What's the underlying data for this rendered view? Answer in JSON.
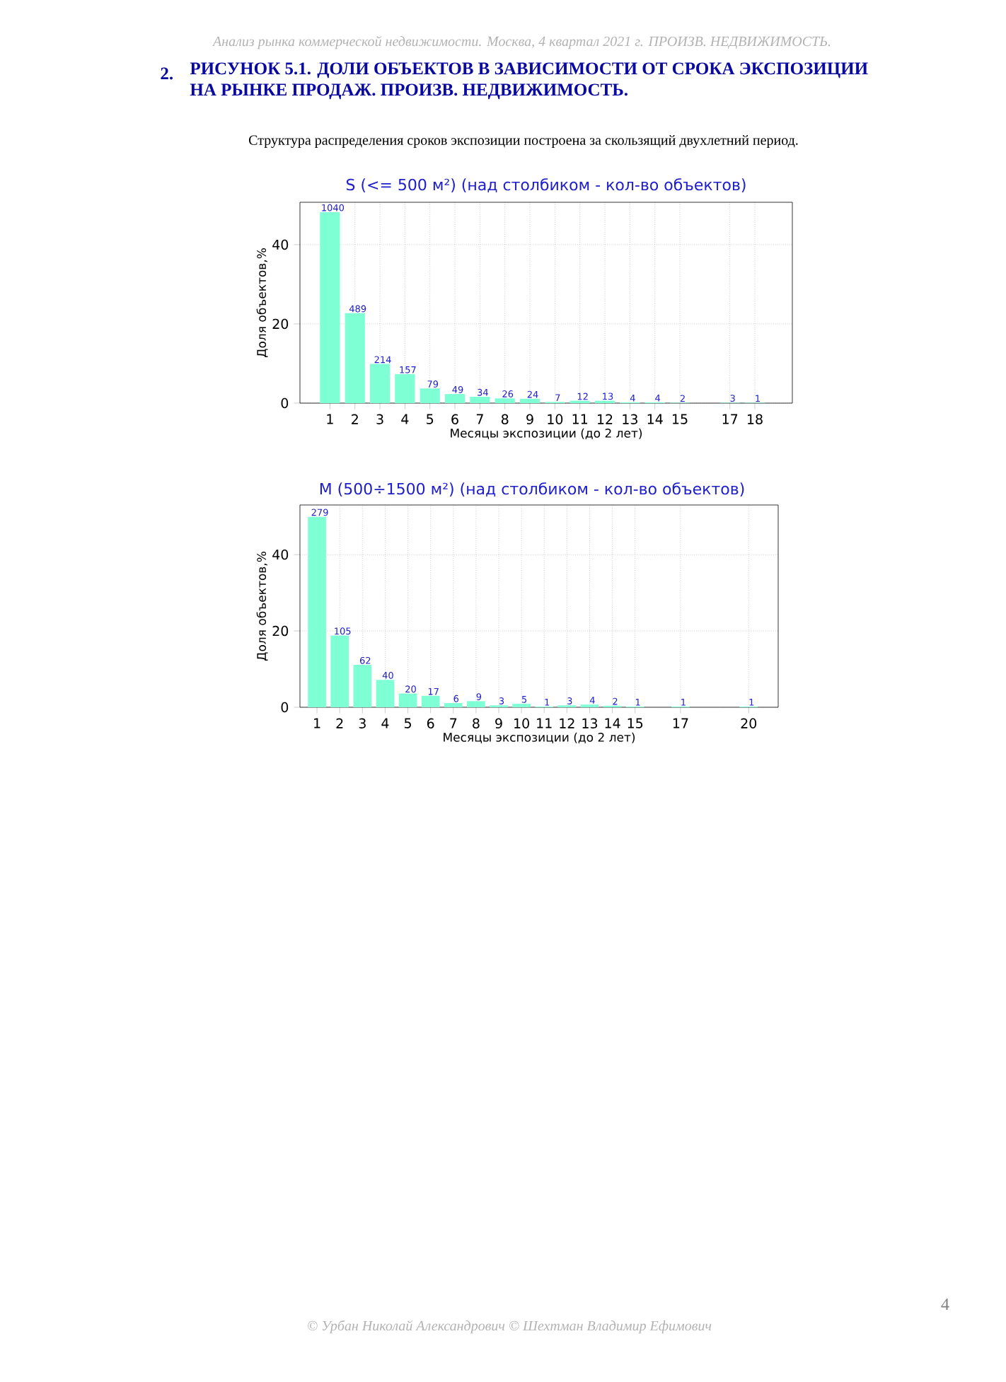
{
  "chart_data": [
    {
      "type": "bar",
      "title": "S (<= 500 м²) (над столбиком - кол-во объектов)",
      "xlabel": "Месяцы экспозиции (до 2 лет)",
      "ylabel": "Доля объектов,%",
      "annotations": [
        "Анализ рынка коммерческой недвижимости.  Москва,  4 квартал 2021 г.  ПРОИЗВ. НЕДВИЖИМОСТЬ.",
        "2.",
        "РИСУНОК 5.1. ДОЛИ ОБЪЕКТОВ В ЗАВИСИМОСТИ ОТ СРОКА ЭКСПОЗИЦИИ НА РЫНКЕ ПРОДАЖ.  ПРОИЗВ. НЕДВИЖИМОСТЬ.",
        "Структура распределения сроков экспозиции построена за скользящий двухлетний период.",
        "© Урбан Николай Александрович   © Шехтман Владимир Ефимович",
        "4",
        {
          "text": "1040",
          "x": 1,
          "y": 48.2
        },
        {
          "text": "489",
          "x": 2,
          "y": 22.7
        },
        {
          "text": "214",
          "x": 3,
          "y": 9.9
        },
        {
          "text": "157",
          "x": 4,
          "y": 7.3
        },
        {
          "text": "79",
          "x": 5,
          "y": 3.7
        },
        {
          "text": "49",
          "x": 6,
          "y": 2.3
        },
        {
          "text": "34",
          "x": 7,
          "y": 1.6
        },
        {
          "text": "26",
          "x": 8,
          "y": 1.2
        },
        {
          "text": "24",
          "x": 9,
          "y": 1.1
        },
        {
          "text": "7",
          "x": 10,
          "y": 0.3
        },
        {
          "text": "12",
          "x": 11,
          "y": 0.6
        },
        {
          "text": "13",
          "x": 12,
          "y": 0.6
        },
        {
          "text": "4",
          "x": 13,
          "y": 0.2
        },
        {
          "text": "4",
          "x": 14,
          "y": 0.2
        },
        {
          "text": "2",
          "x": 15,
          "y": 0.1
        },
        {
          "text": "3",
          "x": 17,
          "y": 0.1
        },
        {
          "text": "1",
          "x": 18,
          "y": 0.1
        }
      ],
      "x": [
        1,
        2,
        3,
        4,
        5,
        6,
        7,
        8,
        9,
        10,
        11,
        12,
        13,
        14,
        15,
        17,
        18
      ],
      "values": [
        48.2,
        22.7,
        9.9,
        7.3,
        3.7,
        2.3,
        1.6,
        1.2,
        1.1,
        0.3,
        0.6,
        0.6,
        0.2,
        0.2,
        0.1,
        0.1,
        0.1
      ],
      "color": "#7fffd4",
      "xlim": [
        -0.2,
        19.5
      ],
      "ylim": [
        0,
        50.7
      ],
      "xticks": [
        1,
        2,
        3,
        4,
        5,
        6,
        7,
        8,
        9,
        10,
        11,
        12,
        13,
        14,
        15,
        17,
        18
      ],
      "yticks": [
        0,
        20,
        40
      ],
      "grid": true
    },
    {
      "type": "bar",
      "title": "M (500÷1500 м²) (над столбиком - кол-во объектов)",
      "xlabel": "Месяцы экспозиции (до 2 лет)",
      "ylabel": "Доля объектов,%",
      "annotations": [
        {
          "text": "279",
          "x": 1,
          "y": 49.9
        },
        {
          "text": "105",
          "x": 2,
          "y": 18.8
        },
        {
          "text": "62",
          "x": 3,
          "y": 11.1
        },
        {
          "text": "40",
          "x": 4,
          "y": 7.2
        },
        {
          "text": "20",
          "x": 5,
          "y": 3.6
        },
        {
          "text": "17",
          "x": 6,
          "y": 3.0
        },
        {
          "text": "6",
          "x": 7,
          "y": 1.1
        },
        {
          "text": "9",
          "x": 8,
          "y": 1.6
        },
        {
          "text": "3",
          "x": 9,
          "y": 0.5
        },
        {
          "text": "5",
          "x": 10,
          "y": 0.9
        },
        {
          "text": "1",
          "x": 11,
          "y": 0.2
        },
        {
          "text": "3",
          "x": 12,
          "y": 0.5
        },
        {
          "text": "4",
          "x": 13,
          "y": 0.7
        },
        {
          "text": "2",
          "x": 14,
          "y": 0.4
        },
        {
          "text": "1",
          "x": 15,
          "y": 0.2
        },
        {
          "text": "1",
          "x": 17,
          "y": 0.2
        },
        {
          "text": "1",
          "x": 20,
          "y": 0.2
        }
      ],
      "x": [
        1,
        2,
        3,
        4,
        5,
        6,
        7,
        8,
        9,
        10,
        11,
        12,
        13,
        14,
        15,
        17,
        20
      ],
      "values": [
        49.9,
        18.8,
        11.1,
        7.2,
        3.6,
        3.0,
        1.1,
        1.6,
        0.5,
        0.9,
        0.2,
        0.5,
        0.7,
        0.4,
        0.2,
        0.2,
        0.2
      ],
      "color": "#7fffd4",
      "xlim": [
        0.25,
        21.3
      ],
      "ylim": [
        0,
        53
      ],
      "xticks": [
        1,
        2,
        3,
        4,
        5,
        6,
        7,
        8,
        9,
        10,
        11,
        12,
        13,
        14,
        15,
        17,
        20
      ],
      "yticks": [
        0,
        20,
        40
      ],
      "grid": true
    }
  ]
}
